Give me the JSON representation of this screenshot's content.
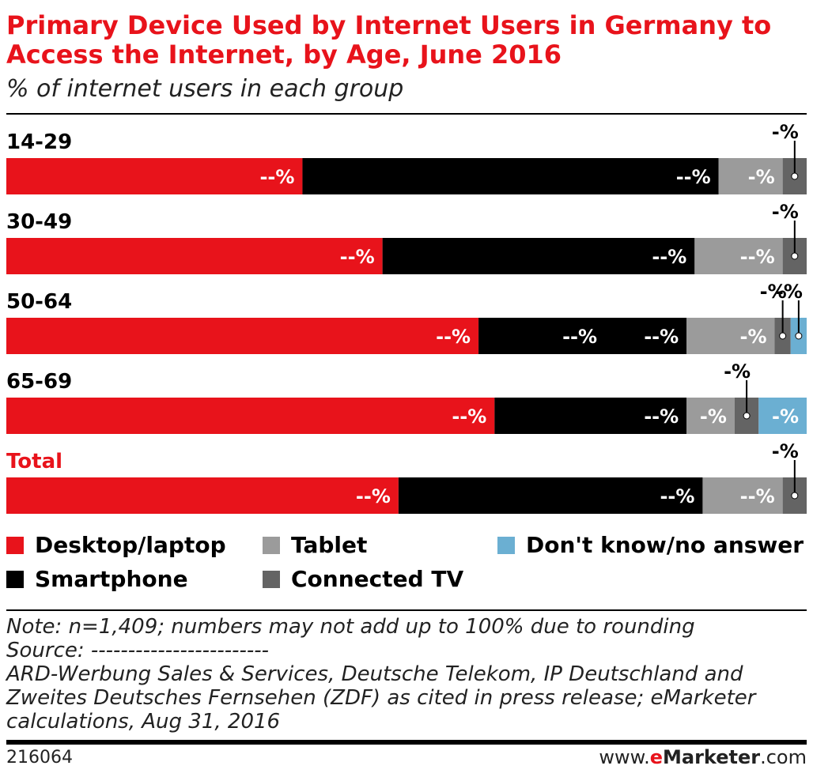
{
  "header": {
    "title": "Primary Device Used by Internet Users in Germany to Access the Internet, by Age, June 2016",
    "subtitle": "% of internet users in each group"
  },
  "colors": {
    "title": "#e8131b",
    "desktop_laptop": "#e8131b",
    "smartphone": "#000000",
    "tablet": "#9b9b9b",
    "connected_tv": "#646464",
    "dont_know": "#6bafd2"
  },
  "chart_data": {
    "type": "bar",
    "orientation": "horizontal",
    "stacked": true,
    "xlim": [
      0,
      100
    ],
    "categories": [
      "14-29",
      "30-49",
      "50-64",
      "65-69",
      "Total"
    ],
    "category_colors": [
      "#000000",
      "#000000",
      "#000000",
      "#000000",
      "#e8131b"
    ],
    "series": [
      {
        "name": "Desktop/laptop",
        "values": [
          37,
          47,
          59,
          61,
          49
        ],
        "labels": [
          "--%",
          "--%",
          "--%",
          "--%",
          "--%"
        ]
      },
      {
        "name": "Smartphone",
        "values": [
          52,
          39,
          26,
          24,
          38
        ],
        "labels": [
          "--%",
          "--%",
          "--%",
          "--%",
          "--%"
        ]
      },
      {
        "name": "Tablet",
        "values": [
          8,
          11,
          11,
          6,
          10
        ],
        "labels": [
          "-%",
          "--%",
          "-%",
          "-%",
          "--%"
        ]
      },
      {
        "name": "Connected TV",
        "values": [
          3,
          3,
          2,
          3,
          3
        ],
        "labels": [
          "-%",
          "-%",
          "-%",
          "-%",
          "-%"
        ]
      },
      {
        "name": "Don't know/no answer",
        "values": [
          0,
          0,
          2,
          6,
          0
        ],
        "labels": [
          "",
          "",
          "-%",
          "-%",
          ""
        ]
      }
    ],
    "extra_labels": [
      {
        "category": "50-64",
        "text": "--%"
      }
    ],
    "legend_position": "bottom"
  },
  "legend": [
    {
      "label": "Desktop/laptop",
      "color": "#e8131b"
    },
    {
      "label": "Tablet",
      "color": "#9b9b9b"
    },
    {
      "label": "Don't know/no answer",
      "color": "#6bafd2"
    },
    {
      "label": "Smartphone",
      "color": "#000000"
    },
    {
      "label": "Connected TV",
      "color": "#646464"
    }
  ],
  "notes": {
    "note": "Note: n=1,409; numbers may not add up to 100% due to rounding",
    "source_label": "Source: ------------------------",
    "source_line1": "ARD-Werbung Sales & Services, Deutsche Telekom, IP Deutschland and",
    "source_line2": "Zweites Deutsches Fernsehen (ZDF) as cited in press release; eMarketer",
    "source_line3": "calculations, Aug 31, 2016"
  },
  "footer": {
    "id": "216064",
    "brand_prefix": "www.",
    "brand_e": "e",
    "brand_main": "Marketer",
    "brand_suffix": ".com"
  }
}
